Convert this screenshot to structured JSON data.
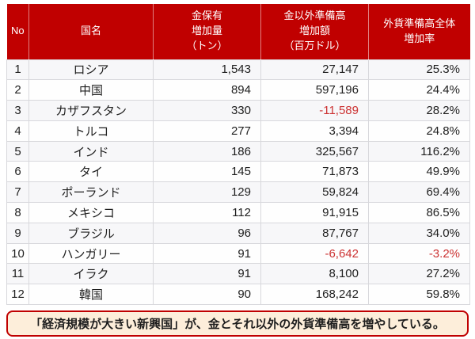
{
  "colors": {
    "header_bg": "#c00000",
    "header_text": "#ffffff",
    "negative_text": "#cc3333",
    "body_text": "#1f1f1f",
    "grid_line": "#d8d8dc",
    "note_bg": "#fdeeda",
    "note_border": "#c00000"
  },
  "table": {
    "headers": [
      {
        "label": "No"
      },
      {
        "label": "国名"
      },
      {
        "label": "金保有\n増加量\n（トン）"
      },
      {
        "label": "金以外準備高\n増加額\n（百万ドル）"
      },
      {
        "label": "外貨準備高全体\n増加率"
      }
    ],
    "rows": [
      {
        "no": "1",
        "country": "ロシア",
        "gold_tons": "1,543",
        "nongold_musd": "27,147",
        "total_rate": "25.3%"
      },
      {
        "no": "2",
        "country": "中国",
        "gold_tons": "894",
        "nongold_musd": "597,196",
        "total_rate": "24.4%"
      },
      {
        "no": "3",
        "country": "カザフスタン",
        "gold_tons": "330",
        "nongold_musd": "-11,589",
        "total_rate": "28.2%"
      },
      {
        "no": "4",
        "country": "トルコ",
        "gold_tons": "277",
        "nongold_musd": "3,394",
        "total_rate": "24.8%"
      },
      {
        "no": "5",
        "country": "インド",
        "gold_tons": "186",
        "nongold_musd": "325,567",
        "total_rate": "116.2%"
      },
      {
        "no": "6",
        "country": "タイ",
        "gold_tons": "145",
        "nongold_musd": "71,873",
        "total_rate": "49.9%"
      },
      {
        "no": "7",
        "country": "ポーランド",
        "gold_tons": "129",
        "nongold_musd": "59,824",
        "total_rate": "69.4%"
      },
      {
        "no": "8",
        "country": "メキシコ",
        "gold_tons": "112",
        "nongold_musd": "91,915",
        "total_rate": "86.5%"
      },
      {
        "no": "9",
        "country": "ブラジル",
        "gold_tons": "96",
        "nongold_musd": "87,767",
        "total_rate": "34.0%"
      },
      {
        "no": "10",
        "country": "ハンガリー",
        "gold_tons": "91",
        "nongold_musd": "-6,642",
        "total_rate": "-3.2%"
      },
      {
        "no": "11",
        "country": "イラク",
        "gold_tons": "91",
        "nongold_musd": "8,100",
        "total_rate": "27.2%"
      },
      {
        "no": "12",
        "country": "韓国",
        "gold_tons": "90",
        "nongold_musd": "168,242",
        "total_rate": "59.8%"
      }
    ]
  },
  "note": {
    "text": "「経済規模が大きい新興国」が、金とそれ以外の外貨準備高を増やしている。"
  },
  "chart_data": {
    "type": "table",
    "columns": [
      "No",
      "国名",
      "金保有増加量（トン）",
      "金以外準備高増加額（百万ドル）",
      "外貨準備高全体増加率"
    ],
    "rows": [
      [
        1,
        "ロシア",
        1543,
        27147,
        25.3
      ],
      [
        2,
        "中国",
        894,
        597196,
        24.4
      ],
      [
        3,
        "カザフスタン",
        330,
        -11589,
        28.2
      ],
      [
        4,
        "トルコ",
        277,
        3394,
        24.8
      ],
      [
        5,
        "インド",
        186,
        325567,
        116.2
      ],
      [
        6,
        "タイ",
        145,
        71873,
        49.9
      ],
      [
        7,
        "ポーランド",
        129,
        59824,
        69.4
      ],
      [
        8,
        "メキシコ",
        112,
        91915,
        86.5
      ],
      [
        9,
        "ブラジル",
        96,
        87767,
        34.0
      ],
      [
        10,
        "ハンガリー",
        91,
        -6642,
        -3.2
      ],
      [
        11,
        "イラク",
        91,
        8100,
        27.2
      ],
      [
        12,
        "韓国",
        90,
        168242,
        59.8
      ]
    ],
    "rate_unit": "%",
    "annotation": "「経済規模が大きい新興国」が、金とそれ以外の外貨準備高を増やしている。"
  }
}
